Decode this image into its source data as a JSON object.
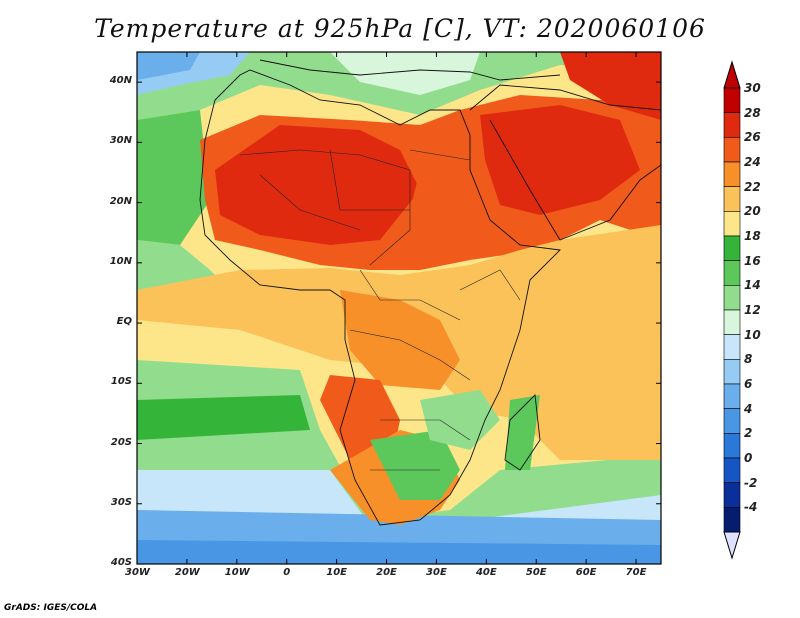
{
  "title": "Temperature at 925hPa [C], VT: 2020060106",
  "credit": "GrADS: IGES/COLA",
  "map": {
    "lon_range": [
      -30,
      75
    ],
    "lat_range": [
      -40,
      45
    ],
    "x_ticks": [
      "30W",
      "20W",
      "10W",
      "0",
      "10E",
      "20E",
      "30E",
      "40E",
      "50E",
      "60E",
      "70E"
    ],
    "y_ticks": [
      "40N",
      "30N",
      "20N",
      "10N",
      "EQ",
      "10S",
      "20S",
      "30S",
      "40S"
    ]
  },
  "colorbar": {
    "levels": [
      {
        "label": "30",
        "color": "#c00000"
      },
      {
        "label": "28",
        "color": "#e02a10"
      },
      {
        "label": "26",
        "color": "#f05a1a"
      },
      {
        "label": "24",
        "color": "#f8902a"
      },
      {
        "label": "22",
        "color": "#fbc25a"
      },
      {
        "label": "20",
        "color": "#fde68a"
      },
      {
        "label": "18",
        "color": "#34b53a"
      },
      {
        "label": "16",
        "color": "#5cc85c"
      },
      {
        "label": "14",
        "color": "#92dc8e"
      },
      {
        "label": "12",
        "color": "#d8f6dc"
      },
      {
        "label": "10",
        "color": "#c8e6fa"
      },
      {
        "label": "8",
        "color": "#96ccf4"
      },
      {
        "label": "6",
        "color": "#6aaeec"
      },
      {
        "label": "4",
        "color": "#4896e4"
      },
      {
        "label": "2",
        "color": "#2a78d8"
      },
      {
        "label": "0",
        "color": "#1656c4"
      },
      {
        "label": "-2",
        "color": "#0a2e9a"
      },
      {
        "label": "-4",
        "color": "#061c6e"
      }
    ],
    "bottom_color": "#e0e0ff"
  }
}
